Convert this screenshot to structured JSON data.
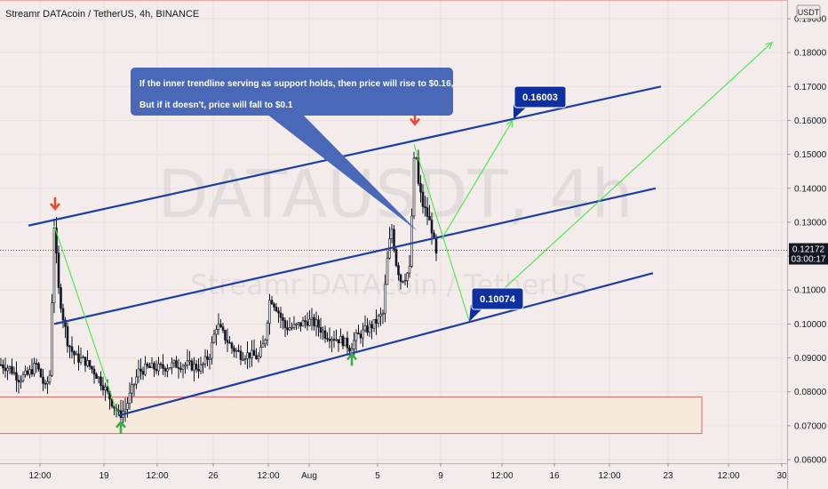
{
  "header": {
    "title": "Streamr DATAcoin / TetherUS, 4h, BINANCE",
    "currency_badge": "USDT"
  },
  "watermark": {
    "symbol": "DATAUSDT, 4h",
    "name": "Streamr DATAcoin / TetherUS"
  },
  "annotation": {
    "line1": "If the inner trendline serving as support holds, then price will rise to $0.16,",
    "line2": "But if it doesn't, price will fall to $0.1"
  },
  "targets": {
    "up": "0.16003",
    "down": "0.10074"
  },
  "price_axis": {
    "last_price": "0.12172",
    "countdown": "03:00:17"
  },
  "colors": {
    "background": "#f3ecea",
    "channel": "#1c3fa3",
    "projection": "#45e845",
    "arrow_down": "#e84a3a",
    "arrow_up": "#3eaa4a",
    "zone_border": "#e06666",
    "zone_fill": "#f8e9dd",
    "note_fill": "#4968b8",
    "tag_fill": "#0d2fa0",
    "candle": "#131722"
  },
  "chart_data": {
    "type": "candlestick",
    "symbol": "DATAUSDT",
    "timeframe": "4h",
    "exchange": "BINANCE",
    "ylim": [
      0.058,
      0.2
    ],
    "y_ticks": [
      "0.19000",
      "0.18000",
      "0.17000",
      "0.16000",
      "0.15000",
      "0.14000",
      "0.13000",
      "0.12000",
      "0.11000",
      "0.10000",
      "0.09000",
      "0.08000",
      "0.07000",
      "0.06000"
    ],
    "y_tick_values": [
      0.19,
      0.18,
      0.17,
      0.16,
      0.15,
      0.14,
      0.13,
      0.12,
      0.11,
      0.1,
      0.09,
      0.08,
      0.07,
      0.06
    ],
    "x_ticks": [
      "12:00",
      "19",
      "12:00",
      "26",
      "12:00",
      "Aug",
      "5",
      "9",
      "12:00",
      "16",
      "12:00",
      "23",
      "12:00",
      "30"
    ],
    "x_tick_slots": [
      45,
      117,
      177,
      240,
      302,
      348,
      425,
      496,
      565,
      624,
      686,
      752,
      820,
      880
    ],
    "last_price": 0.12172,
    "price_points": [
      [
        0,
        0.088
      ],
      [
        10,
        0.087
      ],
      [
        20,
        0.084
      ],
      [
        30,
        0.085
      ],
      [
        40,
        0.088
      ],
      [
        50,
        0.081
      ],
      [
        55,
        0.085
      ],
      [
        60,
        0.129
      ],
      [
        65,
        0.11
      ],
      [
        70,
        0.102
      ],
      [
        75,
        0.095
      ],
      [
        80,
        0.092
      ],
      [
        85,
        0.09
      ],
      [
        95,
        0.089
      ],
      [
        105,
        0.086
      ],
      [
        115,
        0.082
      ],
      [
        125,
        0.077
      ],
      [
        133,
        0.073
      ],
      [
        140,
        0.075
      ],
      [
        148,
        0.081
      ],
      [
        155,
        0.086
      ],
      [
        165,
        0.087
      ],
      [
        180,
        0.087
      ],
      [
        195,
        0.088
      ],
      [
        210,
        0.088
      ],
      [
        225,
        0.087
      ],
      [
        235,
        0.091
      ],
      [
        243,
        0.1
      ],
      [
        250,
        0.097
      ],
      [
        260,
        0.093
      ],
      [
        270,
        0.091
      ],
      [
        280,
        0.091
      ],
      [
        290,
        0.09
      ],
      [
        297,
        0.095
      ],
      [
        303,
        0.108
      ],
      [
        310,
        0.105
      ],
      [
        320,
        0.099
      ],
      [
        330,
        0.099
      ],
      [
        345,
        0.101
      ],
      [
        355,
        0.1
      ],
      [
        365,
        0.097
      ],
      [
        375,
        0.096
      ],
      [
        385,
        0.095
      ],
      [
        393,
        0.093
      ],
      [
        400,
        0.096
      ],
      [
        410,
        0.098
      ],
      [
        420,
        0.1
      ],
      [
        430,
        0.103
      ],
      [
        436,
        0.122
      ],
      [
        440,
        0.128
      ],
      [
        445,
        0.118
      ],
      [
        450,
        0.113
      ],
      [
        455,
        0.114
      ],
      [
        460,
        0.116
      ],
      [
        463,
        0.135
      ],
      [
        466,
        0.154
      ],
      [
        470,
        0.141
      ],
      [
        475,
        0.135
      ],
      [
        480,
        0.132
      ],
      [
        485,
        0.128
      ],
      [
        490,
        0.12
      ]
    ],
    "channel": {
      "upper": [
        [
          32,
          0.129
        ],
        [
          744,
          0.17
        ]
      ],
      "middle": [
        [
          61,
          0.1
        ],
        [
          738,
          0.14
        ]
      ],
      "lower": [
        [
          133,
          0.073
        ],
        [
          735,
          0.115
        ]
      ]
    },
    "projections": [
      [
        [
          61,
          0.129
        ],
        [
          133,
          0.073
        ]
      ],
      [
        [
          466,
          0.153
        ],
        [
          528,
          0.101
        ]
      ],
      [
        [
          497,
          0.125
        ],
        [
          577,
          0.16
        ]
      ],
      [
        [
          528,
          0.101
        ],
        [
          869,
          0.183
        ]
      ]
    ],
    "demand_zone": {
      "x0": 0,
      "x1": 790,
      "y_top": 0.0785,
      "y_bottom": 0.0677
    },
    "resistance_level": 0.1955,
    "markers": [
      {
        "type": "down",
        "x": 62,
        "price": 0.1355
      },
      {
        "type": "down",
        "x": 467,
        "price": 0.1605
      },
      {
        "type": "up",
        "x": 136,
        "price": 0.0695
      },
      {
        "type": "up",
        "x": 396,
        "price": 0.0895
      }
    ]
  }
}
